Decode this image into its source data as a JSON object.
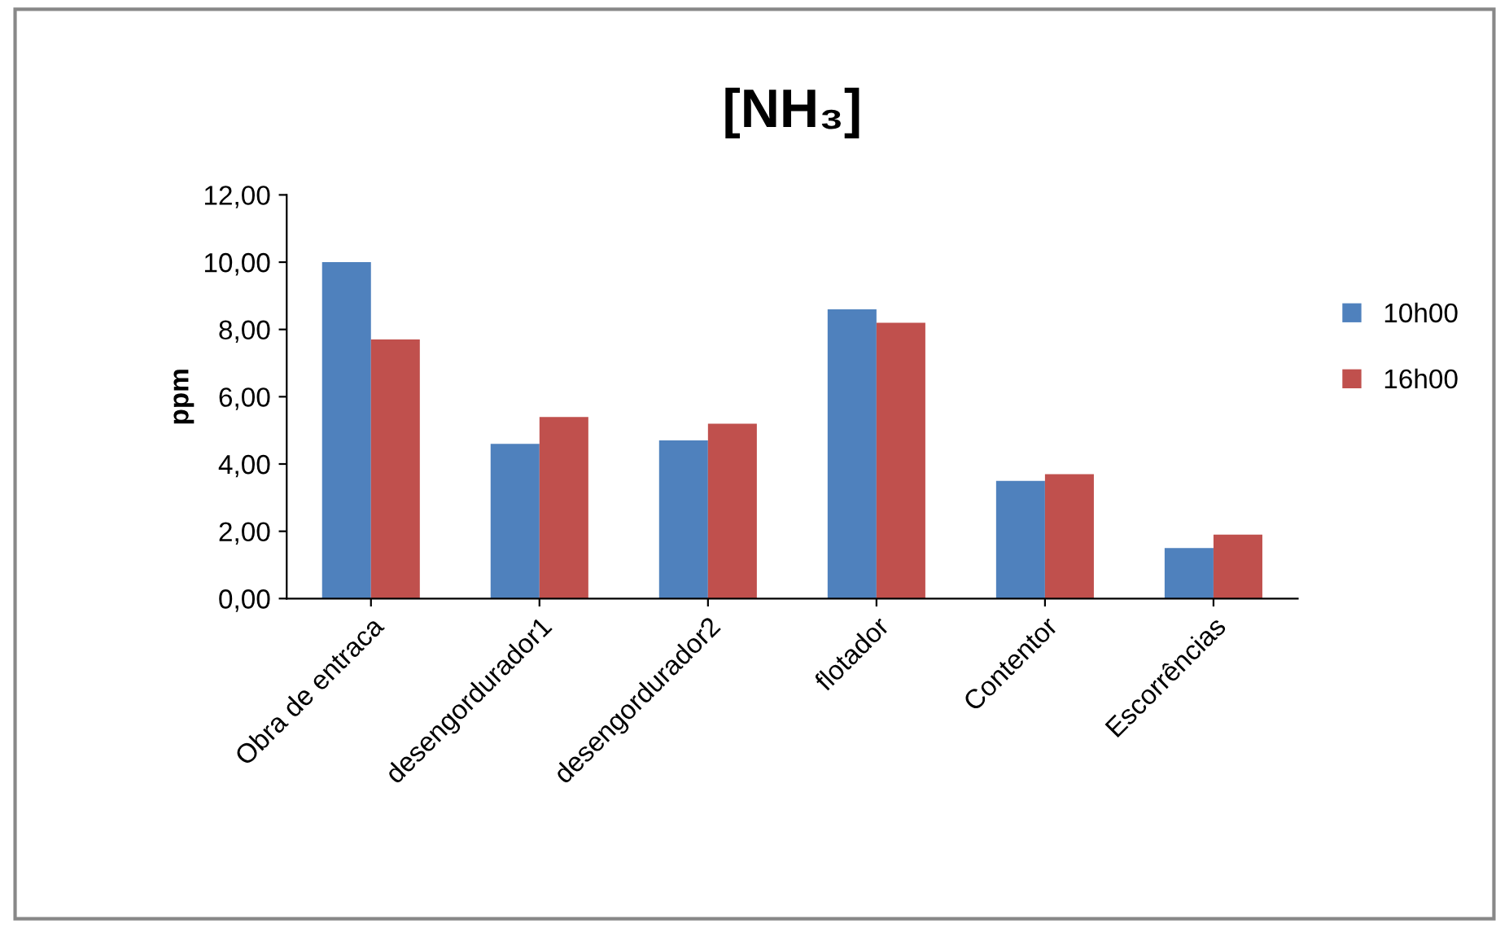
{
  "chart_data": {
    "type": "bar",
    "title": "[NH₃]",
    "ylabel": "ppm",
    "categories": [
      "Obra de entraca",
      "desengordurador1",
      "desengordurador2",
      "flotador",
      "Contentor",
      "Escorrências"
    ],
    "series": [
      {
        "name": "10h00",
        "color": "#4f81bd",
        "values": [
          10.0,
          4.6,
          4.7,
          8.6,
          3.5,
          1.5
        ]
      },
      {
        "name": "16h00",
        "color": "#c0504d",
        "values": [
          7.7,
          5.4,
          5.2,
          8.2,
          3.7,
          1.9
        ]
      }
    ],
    "ylim": [
      0,
      12
    ],
    "yticks": [
      {
        "value": 0,
        "label": "0,00"
      },
      {
        "value": 2,
        "label": "2,00"
      },
      {
        "value": 4,
        "label": "4,00"
      },
      {
        "value": 6,
        "label": "6,00"
      },
      {
        "value": 8,
        "label": "8,00"
      },
      {
        "value": 10,
        "label": "10,00"
      },
      {
        "value": 12,
        "label": "12,00"
      }
    ],
    "grid": false,
    "legend": "right"
  }
}
